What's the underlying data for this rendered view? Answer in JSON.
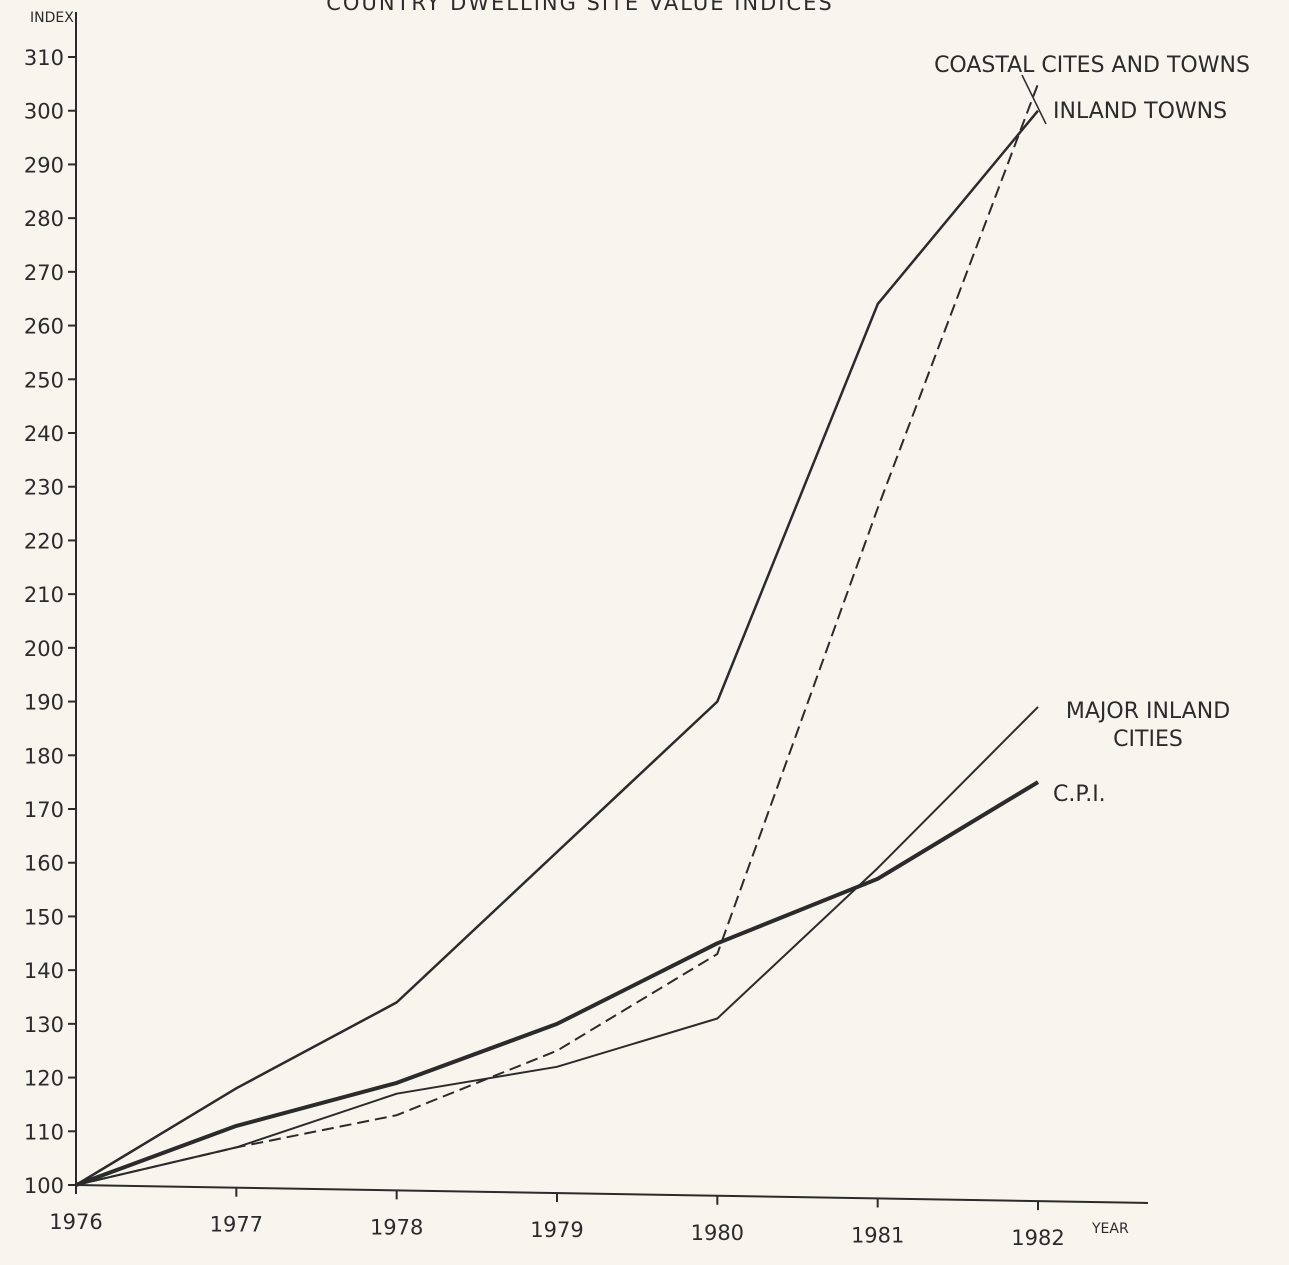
{
  "chart_data": {
    "type": "line",
    "title": "COUNTRY DWELLING SITE VALUE INDICES",
    "xlabel": "YEAR",
    "ylabel": "INDEX",
    "x": [
      "1976",
      "1977",
      "1978",
      "1979",
      "1980",
      "1981",
      "1982"
    ],
    "ylim": [
      100,
      310
    ],
    "yticks": [
      100,
      110,
      120,
      130,
      140,
      150,
      160,
      170,
      180,
      190,
      200,
      210,
      220,
      230,
      240,
      250,
      260,
      270,
      280,
      290,
      300,
      310
    ],
    "grid": false,
    "legend": "direct labels at line ends",
    "series": [
      {
        "name": "COASTAL CITES AND TOWNS",
        "style": "dashed",
        "values": [
          100,
          107,
          113,
          125,
          143,
          226,
          305
        ]
      },
      {
        "name": "INLAND TOWNS",
        "style": "solid",
        "values": [
          100,
          118,
          134,
          162,
          190,
          264,
          300
        ]
      },
      {
        "name": "MAJOR INLAND CITIES",
        "style": "solid-thin",
        "values": [
          100,
          107,
          117,
          122,
          131,
          159,
          189
        ]
      },
      {
        "name": "C.P.I.",
        "style": "solid-thick",
        "values": [
          100,
          111,
          119,
          130,
          145,
          157,
          175
        ]
      }
    ],
    "series_label_lines": {
      "COASTAL CITES AND TOWNS": [
        "COASTAL CITES AND TOWNS"
      ],
      "INLAND TOWNS": [
        "INLAND TOWNS"
      ],
      "MAJOR INLAND CITIES": [
        "MAJOR INLAND",
        "CITIES"
      ],
      "C.P.I.": [
        "C.P.I."
      ]
    },
    "colors": {
      "ink": "#2b2b2b",
      "paper": "#f7f5ee"
    }
  }
}
